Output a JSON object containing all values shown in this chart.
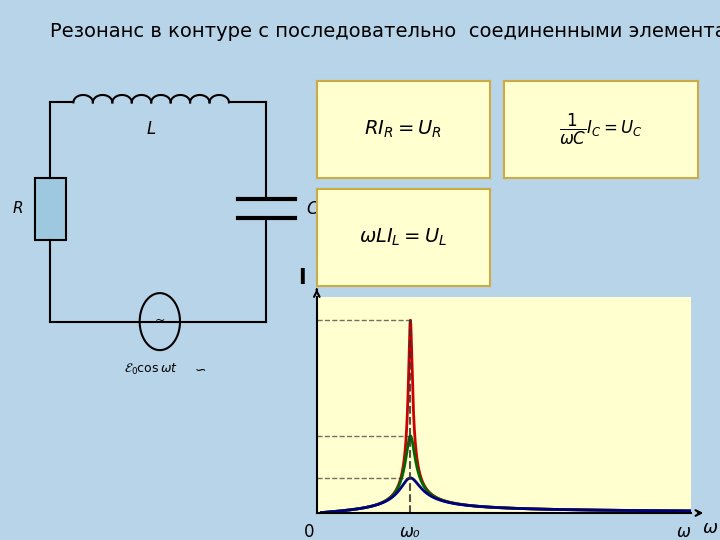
{
  "title": "Резонанс в контуре с последовательно  соединенными элементами",
  "title_fontsize": 14,
  "background_color": "#b8d4e8",
  "plot_bg_color": "#ffffd0",
  "circuit_bg_color": "#c8dff0",
  "formula_bg_color": "#ffffd0",
  "omega_0": 1.0,
  "curves": [
    {
      "R": 0.04,
      "color": "#cc0000",
      "lw": 2.0
    },
    {
      "R": 0.1,
      "color": "#006600",
      "lw": 2.0
    },
    {
      "R": 0.22,
      "color": "#000080",
      "lw": 2.0
    }
  ],
  "xlabel": "ω",
  "ylabel": "I",
  "x_start_label": "0",
  "omega0_label": "ω₀",
  "hline_color": "#333333",
  "vline_color": "#333333",
  "formula1": "$RI_R = U_R$",
  "formula2": "$\\dfrac{1}{\\omega C}I_C = U_C$",
  "formula3": "$\\omega L I_L = U_L$"
}
